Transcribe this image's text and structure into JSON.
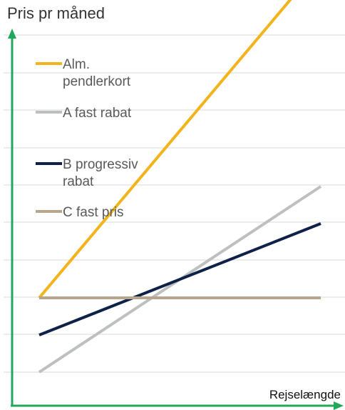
{
  "chart_data": {
    "type": "line",
    "title": "Pris pr måned",
    "xlabel": "Rejselængde",
    "ylabel": "",
    "x": [
      0,
      1
    ],
    "grid": true,
    "legend_position": "top-left",
    "series": [
      {
        "name": "Alm. pendlerkort",
        "color": "#F2B31B",
        "values": [
          3,
          12
        ],
        "legend_lines": [
          "Alm.",
          "pendlerkort"
        ]
      },
      {
        "name": "A fast rabat",
        "color": "#BDBFC1",
        "values": [
          1,
          6
        ],
        "legend_lines": [
          "A fast rabat"
        ]
      },
      {
        "name": "B progressiv rabat",
        "color": "#0E2148",
        "values": [
          2,
          5
        ],
        "legend_lines": [
          "B progressiv",
          "rabat"
        ]
      },
      {
        "name": "C fast pris",
        "color": "#B5A68C",
        "values": [
          3,
          3
        ],
        "legend_lines": [
          "C fast pris"
        ]
      }
    ],
    "ylim": [
      0,
      12
    ]
  },
  "axis_color": "#21A85A",
  "grid_color": "#D9D9D9"
}
